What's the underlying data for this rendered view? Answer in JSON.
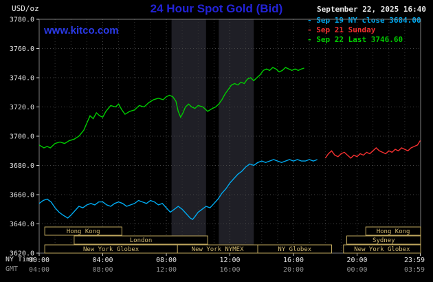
{
  "header": {
    "unit_label": "USD/oz",
    "title": "24 Hour Spot Gold (Bid)",
    "datetime": "September 22, 2025 16:40",
    "watermark": "www.kitco.com",
    "legend": [
      {
        "label": "- Sep 19 NY close 3684.00",
        "color": "#00aaf0"
      },
      {
        "label": "- Sep 21 Sunday",
        "color": "#f43030"
      },
      {
        "label": "- Sep 22 Last 3746.60",
        "color": "#00cc00"
      }
    ]
  },
  "axes": {
    "ny_time_label": "NY Time",
    "gmt_label": "GMT",
    "x_ticks": [
      {
        "hour": 0,
        "ny": "00:00",
        "gmt": "04:00"
      },
      {
        "hour": 4,
        "ny": "04:00",
        "gmt": "08:00"
      },
      {
        "hour": 8,
        "ny": "08:00",
        "gmt": "12:00"
      },
      {
        "hour": 12,
        "ny": "12:00",
        "gmt": "16:00"
      },
      {
        "hour": 16,
        "ny": "16:00",
        "gmt": "20:00"
      },
      {
        "hour": 20,
        "ny": "20:00",
        "gmt": "00:00"
      },
      {
        "hour": 23.98,
        "ny": "23:59",
        "gmt": "03:59"
      }
    ]
  },
  "sessions": [
    {
      "row": 1,
      "start_h": 0.35,
      "end_h": 5.2,
      "label": "Hong Kong"
    },
    {
      "row": 1,
      "start_h": 20.55,
      "end_h": 24,
      "label": "Hong Kong"
    },
    {
      "row": 2,
      "start_h": 2.2,
      "end_h": 10.6,
      "label": "London"
    },
    {
      "row": 2,
      "start_h": 19.35,
      "end_h": 24,
      "label": "Sydney"
    },
    {
      "row": 3,
      "start_h": 0.35,
      "end_h": 8.7,
      "label": "New York Globex"
    },
    {
      "row": 3,
      "start_h": 8.7,
      "end_h": 13.75,
      "label": "New York NYMEX"
    },
    {
      "row": 3,
      "start_h": 13.75,
      "end_h": 18.4,
      "label": "NY Globex"
    },
    {
      "row": 3,
      "start_h": 19.15,
      "end_h": 24,
      "label": "New York Globex"
    }
  ],
  "colors": {
    "background": "#000000",
    "title_blue": "#2323d8",
    "watermark_blue": "#2a3ae8",
    "session_tan": "#c8ae62",
    "grid_gray": "#454545"
  },
  "chart_data": {
    "type": "line",
    "title": "24 Hour Spot Gold (Bid)",
    "xlabel": "NY Time (hours)",
    "ylabel": "USD/oz",
    "xlim": [
      0,
      24
    ],
    "ylim": [
      3620,
      3780
    ],
    "grid": true,
    "legend_position": "top-right",
    "y_ticks": [
      {
        "value": 3620,
        "label": "3620.0"
      },
      {
        "value": 3640,
        "label": "3640.0"
      },
      {
        "value": 3660,
        "label": "3660.0"
      },
      {
        "value": 3680,
        "label": "3680.0"
      },
      {
        "value": 3700,
        "label": "3700.0"
      },
      {
        "value": 3720,
        "label": "3720.0"
      },
      {
        "value": 3740,
        "label": "3740.0"
      },
      {
        "value": 3760,
        "label": "3760.0"
      },
      {
        "value": 3780,
        "label": "3780.0"
      }
    ],
    "bands": [
      {
        "start_h": 8.33,
        "end_h": 10.5,
        "color": "#1f1f26"
      },
      {
        "start_h": 11.3,
        "end_h": 13.5,
        "color": "#1f1f26"
      }
    ],
    "series": [
      {
        "name": "Sep 19 NY close 3684.00",
        "color": "#00aaf0",
        "points": [
          [
            0,
            3654
          ],
          [
            0.25,
            3656
          ],
          [
            0.5,
            3657
          ],
          [
            0.75,
            3655
          ],
          [
            1,
            3651
          ],
          [
            1.25,
            3648
          ],
          [
            1.5,
            3646
          ],
          [
            1.8,
            3644
          ],
          [
            2,
            3646
          ],
          [
            2.25,
            3649
          ],
          [
            2.5,
            3652
          ],
          [
            2.75,
            3651
          ],
          [
            3,
            3653
          ],
          [
            3.25,
            3654
          ],
          [
            3.5,
            3653
          ],
          [
            3.75,
            3655
          ],
          [
            4,
            3655
          ],
          [
            4.25,
            3653
          ],
          [
            4.5,
            3652
          ],
          [
            4.75,
            3654
          ],
          [
            5,
            3655
          ],
          [
            5.25,
            3654
          ],
          [
            5.5,
            3652
          ],
          [
            5.75,
            3653
          ],
          [
            6,
            3654
          ],
          [
            6.25,
            3656
          ],
          [
            6.5,
            3655
          ],
          [
            6.75,
            3654
          ],
          [
            7,
            3656
          ],
          [
            7.25,
            3655
          ],
          [
            7.5,
            3653
          ],
          [
            7.75,
            3654
          ],
          [
            8,
            3651
          ],
          [
            8.25,
            3648
          ],
          [
            8.5,
            3650
          ],
          [
            8.75,
            3652
          ],
          [
            9,
            3650
          ],
          [
            9.25,
            3647
          ],
          [
            9.5,
            3644
          ],
          [
            9.65,
            3643
          ],
          [
            9.8,
            3645
          ],
          [
            10,
            3648
          ],
          [
            10.25,
            3650
          ],
          [
            10.5,
            3652
          ],
          [
            10.75,
            3651
          ],
          [
            11,
            3654
          ],
          [
            11.25,
            3657
          ],
          [
            11.5,
            3661
          ],
          [
            11.75,
            3664
          ],
          [
            12,
            3668
          ],
          [
            12.25,
            3671
          ],
          [
            12.5,
            3674
          ],
          [
            12.75,
            3676
          ],
          [
            13,
            3679
          ],
          [
            13.25,
            3681
          ],
          [
            13.5,
            3680
          ],
          [
            13.75,
            3682
          ],
          [
            14,
            3683
          ],
          [
            14.25,
            3682
          ],
          [
            14.5,
            3683
          ],
          [
            14.75,
            3684
          ],
          [
            15,
            3683
          ],
          [
            15.25,
            3682
          ],
          [
            15.5,
            3683
          ],
          [
            15.75,
            3684
          ],
          [
            16,
            3683
          ],
          [
            16.25,
            3684
          ],
          [
            16.5,
            3683
          ],
          [
            16.75,
            3683
          ],
          [
            17,
            3684
          ],
          [
            17.25,
            3683
          ],
          [
            17.5,
            3684
          ]
        ]
      },
      {
        "name": "Sep 21 Sunday",
        "color": "#f43030",
        "points": [
          [
            18,
            3685
          ],
          [
            18.2,
            3688
          ],
          [
            18.4,
            3690
          ],
          [
            18.6,
            3687
          ],
          [
            18.8,
            3686
          ],
          [
            19,
            3688
          ],
          [
            19.2,
            3689
          ],
          [
            19.4,
            3687
          ],
          [
            19.6,
            3685
          ],
          [
            19.8,
            3687
          ],
          [
            20,
            3686
          ],
          [
            20.2,
            3688
          ],
          [
            20.4,
            3687
          ],
          [
            20.6,
            3689
          ],
          [
            20.8,
            3688
          ],
          [
            21,
            3690
          ],
          [
            21.2,
            3692
          ],
          [
            21.4,
            3690
          ],
          [
            21.6,
            3689
          ],
          [
            21.8,
            3688
          ],
          [
            22,
            3690
          ],
          [
            22.2,
            3689
          ],
          [
            22.4,
            3691
          ],
          [
            22.6,
            3690
          ],
          [
            22.8,
            3692
          ],
          [
            23,
            3691
          ],
          [
            23.2,
            3690
          ],
          [
            23.4,
            3692
          ],
          [
            23.6,
            3693
          ],
          [
            23.8,
            3694
          ],
          [
            23.98,
            3697
          ]
        ]
      },
      {
        "name": "Sep 22 Last 3746.60",
        "color": "#00cc00",
        "points": [
          [
            0,
            3694
          ],
          [
            0.3,
            3692
          ],
          [
            0.5,
            3693
          ],
          [
            0.7,
            3692
          ],
          [
            1,
            3695
          ],
          [
            1.3,
            3696
          ],
          [
            1.6,
            3695
          ],
          [
            1.9,
            3697
          ],
          [
            2.2,
            3698
          ],
          [
            2.5,
            3700
          ],
          [
            2.8,
            3704
          ],
          [
            3,
            3709
          ],
          [
            3.2,
            3714
          ],
          [
            3.4,
            3712
          ],
          [
            3.6,
            3716
          ],
          [
            3.8,
            3714
          ],
          [
            4,
            3713
          ],
          [
            4.2,
            3717
          ],
          [
            4.5,
            3721
          ],
          [
            4.8,
            3720
          ],
          [
            5,
            3722
          ],
          [
            5.2,
            3718
          ],
          [
            5.4,
            3715
          ],
          [
            5.7,
            3717
          ],
          [
            6,
            3718
          ],
          [
            6.3,
            3721
          ],
          [
            6.6,
            3720
          ],
          [
            6.9,
            3723
          ],
          [
            7.2,
            3725
          ],
          [
            7.5,
            3726
          ],
          [
            7.8,
            3725
          ],
          [
            8,
            3727
          ],
          [
            8.2,
            3728
          ],
          [
            8.4,
            3727
          ],
          [
            8.6,
            3724
          ],
          [
            8.75,
            3717
          ],
          [
            8.9,
            3713
          ],
          [
            9.05,
            3716
          ],
          [
            9.2,
            3720
          ],
          [
            9.4,
            3722
          ],
          [
            9.6,
            3720
          ],
          [
            9.8,
            3719
          ],
          [
            10,
            3721
          ],
          [
            10.3,
            3720
          ],
          [
            10.6,
            3717
          ],
          [
            10.9,
            3719
          ],
          [
            11.1,
            3720
          ],
          [
            11.3,
            3722
          ],
          [
            11.5,
            3725
          ],
          [
            11.7,
            3729
          ],
          [
            11.9,
            3732
          ],
          [
            12.1,
            3735
          ],
          [
            12.3,
            3736
          ],
          [
            12.5,
            3735
          ],
          [
            12.7,
            3737
          ],
          [
            12.9,
            3736
          ],
          [
            13.1,
            3739
          ],
          [
            13.3,
            3740
          ],
          [
            13.5,
            3738
          ],
          [
            13.7,
            3740
          ],
          [
            13.9,
            3742
          ],
          [
            14.1,
            3745
          ],
          [
            14.3,
            3746
          ],
          [
            14.5,
            3745
          ],
          [
            14.7,
            3747
          ],
          [
            14.9,
            3746
          ],
          [
            15.1,
            3744
          ],
          [
            15.3,
            3745
          ],
          [
            15.5,
            3747
          ],
          [
            15.7,
            3746
          ],
          [
            15.9,
            3745
          ],
          [
            16.1,
            3746
          ],
          [
            16.3,
            3745
          ],
          [
            16.5,
            3746
          ],
          [
            16.67,
            3746.6
          ]
        ]
      }
    ]
  }
}
